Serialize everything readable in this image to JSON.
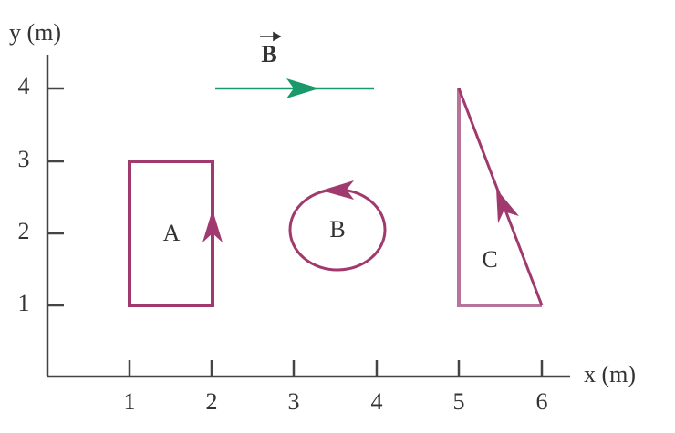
{
  "axes": {
    "y_label": "y (m)",
    "x_label": "x (m)",
    "x_ticks": [
      "1",
      "2",
      "3",
      "4",
      "5",
      "6"
    ],
    "y_ticks": [
      "1",
      "2",
      "3",
      "4"
    ]
  },
  "field_label": "B",
  "loops": [
    {
      "label": "A"
    },
    {
      "label": "B"
    },
    {
      "label": "C"
    }
  ]
}
